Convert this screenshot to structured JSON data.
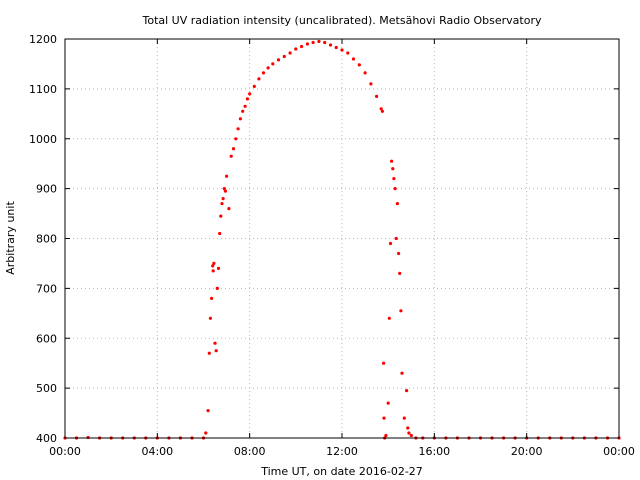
{
  "chart_data": {
    "type": "scatter",
    "title": "Total UV radiation intensity (uncalibrated). Metsähovi Radio Observatory",
    "xlabel": "Time UT, on date 2016-02-27",
    "ylabel": "Arbitrary unit",
    "xlim": [
      0,
      24
    ],
    "ylim": [
      400,
      1200
    ],
    "x_ticks": [
      0,
      4,
      8,
      12,
      16,
      20,
      24
    ],
    "x_tick_labels": [
      "00:00",
      "04:00",
      "08:00",
      "12:00",
      "16:00",
      "20:00",
      "00:00"
    ],
    "y_ticks": [
      400,
      500,
      600,
      700,
      800,
      900,
      1000,
      1100,
      1200
    ],
    "y_tick_labels": [
      "400",
      "500",
      "600",
      "700",
      "800",
      "900",
      "1000",
      "1100",
      "1200"
    ],
    "grid": true,
    "legend": "none",
    "point_color": "#ff0000",
    "series": [
      {
        "name": "",
        "points": [
          [
            0.0,
            400
          ],
          [
            0.5,
            400
          ],
          [
            1.0,
            401
          ],
          [
            1.5,
            400
          ],
          [
            2.0,
            400
          ],
          [
            2.5,
            400
          ],
          [
            3.0,
            400
          ],
          [
            3.5,
            400
          ],
          [
            4.0,
            400
          ],
          [
            4.5,
            400
          ],
          [
            5.0,
            400
          ],
          [
            5.5,
            400
          ],
          [
            6.0,
            400
          ],
          [
            6.1,
            410
          ],
          [
            6.2,
            455
          ],
          [
            6.25,
            570
          ],
          [
            6.3,
            640
          ],
          [
            6.35,
            680
          ],
          [
            6.4,
            745
          ],
          [
            6.42,
            735
          ],
          [
            6.45,
            750
          ],
          [
            6.5,
            590
          ],
          [
            6.55,
            575
          ],
          [
            6.6,
            700
          ],
          [
            6.65,
            740
          ],
          [
            6.7,
            810
          ],
          [
            6.75,
            845
          ],
          [
            6.8,
            870
          ],
          [
            6.85,
            880
          ],
          [
            6.9,
            900
          ],
          [
            6.95,
            895
          ],
          [
            7.0,
            925
          ],
          [
            7.1,
            860
          ],
          [
            7.2,
            965
          ],
          [
            7.3,
            980
          ],
          [
            7.4,
            1000
          ],
          [
            7.5,
            1020
          ],
          [
            7.6,
            1040
          ],
          [
            7.7,
            1055
          ],
          [
            7.8,
            1065
          ],
          [
            7.9,
            1080
          ],
          [
            8.0,
            1090
          ],
          [
            8.2,
            1105
          ],
          [
            8.4,
            1120
          ],
          [
            8.6,
            1132
          ],
          [
            8.8,
            1142
          ],
          [
            9.0,
            1150
          ],
          [
            9.25,
            1158
          ],
          [
            9.5,
            1165
          ],
          [
            9.75,
            1172
          ],
          [
            10.0,
            1180
          ],
          [
            10.25,
            1185
          ],
          [
            10.5,
            1190
          ],
          [
            10.75,
            1193
          ],
          [
            11.0,
            1195
          ],
          [
            11.25,
            1193
          ],
          [
            11.5,
            1188
          ],
          [
            11.75,
            1183
          ],
          [
            12.0,
            1178
          ],
          [
            12.25,
            1172
          ],
          [
            12.5,
            1160
          ],
          [
            12.75,
            1148
          ],
          [
            13.0,
            1132
          ],
          [
            13.25,
            1110
          ],
          [
            13.5,
            1085
          ],
          [
            13.7,
            1060
          ],
          [
            13.75,
            1055
          ],
          [
            13.8,
            550
          ],
          [
            13.82,
            440
          ],
          [
            13.85,
            400
          ],
          [
            13.9,
            405
          ],
          [
            14.0,
            470
          ],
          [
            14.05,
            640
          ],
          [
            14.1,
            790
          ],
          [
            14.15,
            955
          ],
          [
            14.2,
            940
          ],
          [
            14.25,
            920
          ],
          [
            14.3,
            900
          ],
          [
            14.35,
            800
          ],
          [
            14.4,
            870
          ],
          [
            14.45,
            770
          ],
          [
            14.5,
            730
          ],
          [
            14.55,
            655
          ],
          [
            14.6,
            530
          ],
          [
            14.7,
            440
          ],
          [
            14.8,
            495
          ],
          [
            14.85,
            420
          ],
          [
            14.9,
            410
          ],
          [
            15.0,
            405
          ],
          [
            15.2,
            400
          ],
          [
            15.5,
            400
          ],
          [
            16.0,
            400
          ],
          [
            16.5,
            400
          ],
          [
            17.0,
            400
          ],
          [
            17.5,
            400
          ],
          [
            18.0,
            400
          ],
          [
            18.5,
            400
          ],
          [
            19.0,
            400
          ],
          [
            19.5,
            400
          ],
          [
            20.0,
            400
          ],
          [
            20.5,
            400
          ],
          [
            21.0,
            400
          ],
          [
            21.5,
            400
          ],
          [
            22.0,
            400
          ],
          [
            22.5,
            400
          ],
          [
            23.0,
            400
          ],
          [
            23.5,
            400
          ],
          [
            24.0,
            400
          ]
        ]
      }
    ]
  }
}
